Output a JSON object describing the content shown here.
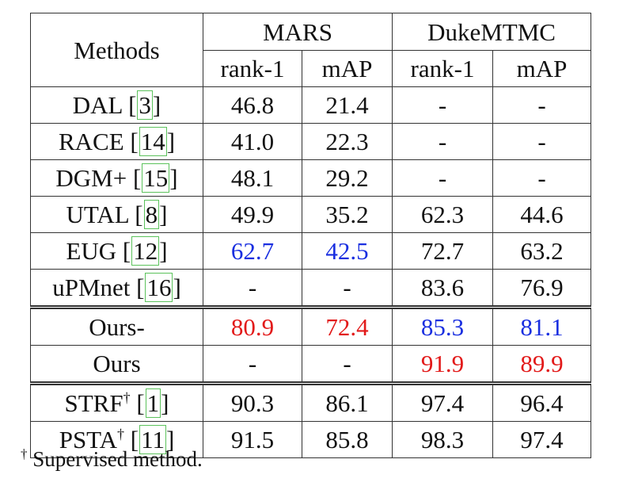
{
  "table": {
    "method_header": "Methods",
    "groups": [
      "MARS",
      "DukeMTMC"
    ],
    "subheaders": [
      "rank-1",
      "mAP",
      "rank-1",
      "mAP"
    ],
    "rows": [
      {
        "name": "DAL",
        "dagger": "",
        "cite": "3",
        "values": [
          "46.8",
          "21.4",
          "-",
          "-"
        ],
        "styles": [
          "",
          "",
          "",
          ""
        ]
      },
      {
        "name": "RACE",
        "dagger": "",
        "cite": "14",
        "values": [
          "41.0",
          "22.3",
          "-",
          "-"
        ],
        "styles": [
          "",
          "",
          "",
          ""
        ]
      },
      {
        "name": "DGM+",
        "dagger": "",
        "cite": "15",
        "values": [
          "48.1",
          "29.2",
          "-",
          "-"
        ],
        "styles": [
          "",
          "",
          "",
          ""
        ]
      },
      {
        "name": "UTAL",
        "dagger": "",
        "cite": "8",
        "values": [
          "49.9",
          "35.2",
          "62.3",
          "44.6"
        ],
        "styles": [
          "",
          "",
          "",
          ""
        ]
      },
      {
        "name": "EUG",
        "dagger": "",
        "cite": "12",
        "values": [
          "62.7",
          "42.5",
          "72.7",
          "63.2"
        ],
        "styles": [
          "blue",
          "blue",
          "",
          ""
        ]
      },
      {
        "name": "uPMnet",
        "dagger": "",
        "cite": "16",
        "values": [
          "-",
          "-",
          "83.6",
          "76.9"
        ],
        "styles": [
          "",
          "",
          "",
          ""
        ]
      },
      {
        "name": "Ours-",
        "dagger": "",
        "cite": "",
        "values": [
          "80.9",
          "72.4",
          "85.3",
          "81.1"
        ],
        "styles": [
          "red",
          "red",
          "blue",
          "blue"
        ],
        "separator": true
      },
      {
        "name": "Ours",
        "dagger": "",
        "cite": "",
        "values": [
          "-",
          "-",
          "91.9",
          "89.9"
        ],
        "styles": [
          "",
          "",
          "red",
          "red"
        ]
      },
      {
        "name": "STRF",
        "dagger": "†",
        "cite": "1",
        "values": [
          "90.3",
          "86.1",
          "97.4",
          "96.4"
        ],
        "styles": [
          "",
          "",
          "",
          ""
        ],
        "separator": true
      },
      {
        "name": "PSTA",
        "dagger": "†",
        "cite": "11",
        "values": [
          "91.5",
          "85.8",
          "98.3",
          "97.4"
        ],
        "styles": [
          "",
          "",
          "",
          ""
        ]
      }
    ]
  },
  "footnote": {
    "mark": "†",
    "text": "Supervised method."
  },
  "colors": {
    "best": "#e21a1a",
    "second": "#1a2fe0",
    "cite_box": "#5cc25c"
  }
}
